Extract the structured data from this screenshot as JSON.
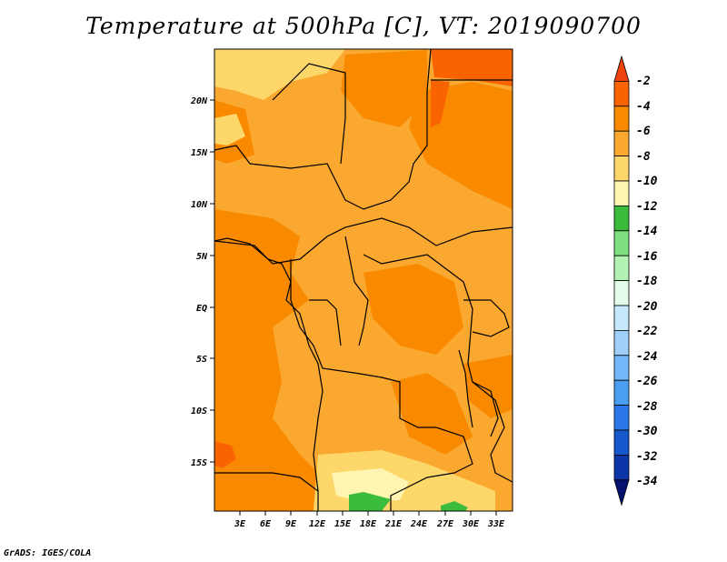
{
  "title": "Temperature at 500hPa [C], VT: 2019090700",
  "credit": "GrADS: IGES/COLA",
  "map": {
    "lat_labels": [
      "20N",
      "15N",
      "10N",
      "5N",
      "EQ",
      "5S",
      "10S",
      "15S"
    ],
    "lon_labels": [
      "3E",
      "6E",
      "9E",
      "12E",
      "15E",
      "18E",
      "21E",
      "24E",
      "27E",
      "30E",
      "33E"
    ]
  },
  "colorbar": {
    "labels": [
      "-2",
      "-4",
      "-6",
      "-8",
      "-10",
      "-12",
      "-14",
      "-16",
      "-18",
      "-20",
      "-22",
      "-24",
      "-26",
      "-28",
      "-30",
      "-32",
      "-34"
    ],
    "colors": [
      "#f04410",
      "#f96400",
      "#f98a00",
      "#fba830",
      "#fdd76a",
      "#fff5b0",
      "#3cbc3c",
      "#7ee07e",
      "#b4f2b4",
      "#e4fcea",
      "#c6e8fc",
      "#a0d0fa",
      "#73b8f8",
      "#4a9ef2",
      "#2a78e8",
      "#1757cc",
      "#0c35a8",
      "#04126e"
    ]
  }
}
